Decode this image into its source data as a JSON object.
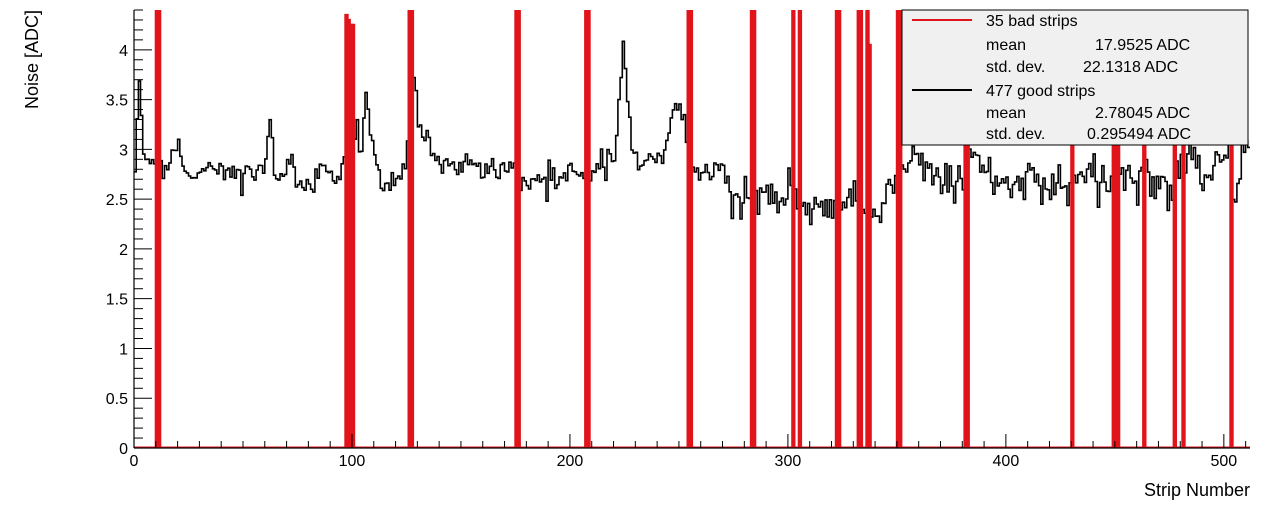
{
  "colors": {
    "good": "#000000",
    "bad": "#e0141a",
    "legend_bg": "#f0f0f0",
    "axis": "#000000",
    "background": "#ffffff"
  },
  "legend": {
    "position": "top-right",
    "bad": {
      "label": "35 bad strips",
      "mean_label": "mean",
      "mean_value": "17.9525 ADC",
      "std_label": "std. dev.",
      "std_value": "22.1318 ADC"
    },
    "good": {
      "label": "477 good strips",
      "mean_label": "mean",
      "mean_value": "2.78045 ADC",
      "std_label": "std. dev.",
      "std_value": "0.295494 ADC"
    }
  },
  "chart_data": {
    "type": "line",
    "title": "",
    "xlabel": "Strip Number",
    "ylabel": "Noise [ADC]",
    "xlim": [
      0,
      512
    ],
    "ylim": [
      0,
      4.4
    ],
    "x_ticks": [
      0,
      100,
      200,
      300,
      400,
      500
    ],
    "y_ticks": [
      0,
      0.5,
      1,
      1.5,
      2,
      2.5,
      3,
      3.5,
      4
    ],
    "y_tick_labels": [
      "0",
      "0.5",
      "1",
      "1.5",
      "2",
      "2.5",
      "3",
      "3.5",
      "4"
    ],
    "grid": false,
    "legend_position": "top-right",
    "series": [
      {
        "name": "477 good strips",
        "color": "#000000",
        "anchors": [
          [
            0,
            2.75
          ],
          [
            2,
            3.66
          ],
          [
            4,
            2.9
          ],
          [
            6,
            2.95
          ],
          [
            9,
            2.8
          ],
          [
            13,
            2.72
          ],
          [
            15,
            2.85
          ],
          [
            18,
            2.95
          ],
          [
            20,
            3.05
          ],
          [
            22,
            2.8
          ],
          [
            25,
            2.7
          ],
          [
            30,
            2.85
          ],
          [
            35,
            2.8
          ],
          [
            40,
            2.78
          ],
          [
            45,
            2.75
          ],
          [
            50,
            2.8
          ],
          [
            55,
            2.72
          ],
          [
            58,
            2.78
          ],
          [
            60,
            2.9
          ],
          [
            62,
            3.3
          ],
          [
            64,
            2.8
          ],
          [
            66,
            2.7
          ],
          [
            70,
            2.8
          ],
          [
            72,
            2.9
          ],
          [
            74,
            2.75
          ],
          [
            78,
            2.65
          ],
          [
            82,
            2.7
          ],
          [
            86,
            2.8
          ],
          [
            90,
            2.75
          ],
          [
            94,
            2.72
          ],
          [
            96,
            2.95
          ],
          [
            98,
            3.4
          ],
          [
            102,
            3.1
          ],
          [
            104,
            3.0
          ],
          [
            106,
            3.5
          ],
          [
            108,
            3.15
          ],
          [
            110,
            2.9
          ],
          [
            112,
            2.75
          ],
          [
            114,
            2.62
          ],
          [
            116,
            2.6
          ],
          [
            118,
            2.7
          ],
          [
            120,
            2.65
          ],
          [
            122,
            2.75
          ],
          [
            124,
            2.85
          ],
          [
            126,
            3.45
          ],
          [
            128,
            3.75
          ],
          [
            130,
            3.3
          ],
          [
            132,
            3.1
          ],
          [
            134,
            3.2
          ],
          [
            136,
            3.0
          ],
          [
            138,
            2.9
          ],
          [
            140,
            2.8
          ],
          [
            145,
            2.85
          ],
          [
            150,
            2.8
          ],
          [
            155,
            2.82
          ],
          [
            160,
            2.78
          ],
          [
            165,
            2.75
          ],
          [
            170,
            2.82
          ],
          [
            174,
            2.9
          ],
          [
            177,
            2.65
          ],
          [
            180,
            2.65
          ],
          [
            185,
            2.7
          ],
          [
            190,
            2.75
          ],
          [
            195,
            2.7
          ],
          [
            200,
            2.8
          ],
          [
            205,
            2.72
          ],
          [
            210,
            2.75
          ],
          [
            212,
            2.8
          ],
          [
            214,
            2.95
          ],
          [
            216,
            2.85
          ],
          [
            218,
            3.0
          ],
          [
            220,
            2.85
          ],
          [
            222,
            3.35
          ],
          [
            224,
            4.15
          ],
          [
            226,
            3.55
          ],
          [
            228,
            3.0
          ],
          [
            230,
            2.9
          ],
          [
            232,
            2.85
          ],
          [
            236,
            2.9
          ],
          [
            240,
            2.95
          ],
          [
            242,
            2.8
          ],
          [
            244,
            3.1
          ],
          [
            246,
            3.3
          ],
          [
            248,
            3.45
          ],
          [
            250,
            3.4
          ],
          [
            252,
            3.3
          ],
          [
            254,
            2.8
          ],
          [
            258,
            2.75
          ],
          [
            262,
            2.7
          ],
          [
            266,
            2.8
          ],
          [
            270,
            2.85
          ],
          [
            272,
            2.55
          ],
          [
            276,
            2.5
          ],
          [
            280,
            2.45
          ],
          [
            284,
            2.5
          ],
          [
            288,
            2.55
          ],
          [
            292,
            2.45
          ],
          [
            296,
            2.4
          ],
          [
            300,
            2.55
          ],
          [
            302,
            2.65
          ],
          [
            304,
            2.4
          ],
          [
            308,
            2.4
          ],
          [
            312,
            2.45
          ],
          [
            316,
            2.5
          ],
          [
            320,
            2.45
          ],
          [
            324,
            2.5
          ],
          [
            328,
            2.45
          ],
          [
            330,
            2.5
          ],
          [
            334,
            2.4
          ],
          [
            336,
            2.4
          ],
          [
            340,
            2.35
          ],
          [
            342,
            2.38
          ],
          [
            344,
            2.5
          ],
          [
            346,
            2.65
          ],
          [
            348,
            2.5
          ],
          [
            350,
            2.8
          ],
          [
            354,
            2.9
          ],
          [
            358,
            3.0
          ],
          [
            362,
            2.9
          ],
          [
            366,
            2.8
          ],
          [
            370,
            2.7
          ],
          [
            374,
            2.6
          ],
          [
            378,
            2.7
          ],
          [
            382,
            3.0
          ],
          [
            386,
            2.9
          ],
          [
            390,
            2.8
          ],
          [
            394,
            2.7
          ],
          [
            398,
            2.6
          ],
          [
            402,
            2.7
          ],
          [
            406,
            2.8
          ],
          [
            410,
            2.75
          ],
          [
            414,
            2.7
          ],
          [
            418,
            2.65
          ],
          [
            422,
            2.7
          ],
          [
            426,
            2.6
          ],
          [
            430,
            2.7
          ],
          [
            434,
            2.75
          ],
          [
            438,
            2.8
          ],
          [
            442,
            2.7
          ],
          [
            446,
            2.6
          ],
          [
            450,
            2.7
          ],
          [
            454,
            2.8
          ],
          [
            458,
            2.7
          ],
          [
            462,
            2.75
          ],
          [
            466,
            2.8
          ],
          [
            470,
            2.7
          ],
          [
            474,
            2.65
          ],
          [
            478,
            2.75
          ],
          [
            482,
            2.9
          ],
          [
            486,
            2.8
          ],
          [
            490,
            2.7
          ],
          [
            494,
            2.8
          ],
          [
            498,
            2.9
          ],
          [
            502,
            2.9
          ],
          [
            505,
            2.45
          ],
          [
            508,
            2.9
          ],
          [
            510,
            3.0
          ],
          [
            512,
            2.9
          ]
        ]
      },
      {
        "name": "35 bad strips",
        "color": "#e0141a",
        "strips": [
          {
            "strip": 10,
            "value": 20
          },
          {
            "strip": 11,
            "value": 20
          },
          {
            "strip": 97,
            "value": 4.35
          },
          {
            "strip": 98,
            "value": 4.3
          },
          {
            "strip": 99,
            "value": 4.25
          },
          {
            "strip": 100,
            "value": 4.25
          },
          {
            "strip": 126,
            "value": 20
          },
          {
            "strip": 127,
            "value": 20
          },
          {
            "strip": 175,
            "value": 20
          },
          {
            "strip": 176,
            "value": 20
          },
          {
            "strip": 207,
            "value": 20
          },
          {
            "strip": 208,
            "value": 20
          },
          {
            "strip": 254,
            "value": 20
          },
          {
            "strip": 255,
            "value": 20
          },
          {
            "strip": 283,
            "value": 20
          },
          {
            "strip": 284,
            "value": 20
          },
          {
            "strip": 302,
            "value": 20
          },
          {
            "strip": 305,
            "value": 20
          },
          {
            "strip": 322,
            "value": 20
          },
          {
            "strip": 323,
            "value": 20
          },
          {
            "strip": 332,
            "value": 20
          },
          {
            "strip": 333,
            "value": 20
          },
          {
            "strip": 336,
            "value": 20
          },
          {
            "strip": 337,
            "value": 4.05
          },
          {
            "strip": 350,
            "value": 20
          },
          {
            "strip": 351,
            "value": 20
          },
          {
            "strip": 381,
            "value": 20
          },
          {
            "strip": 382,
            "value": 20
          },
          {
            "strip": 430,
            "value": 20
          },
          {
            "strip": 449,
            "value": 20
          },
          {
            "strip": 451,
            "value": 20
          },
          {
            "strip": 463,
            "value": 20
          },
          {
            "strip": 477,
            "value": 20
          },
          {
            "strip": 481,
            "value": 20
          },
          {
            "strip": 503,
            "value": 20
          }
        ]
      }
    ]
  }
}
